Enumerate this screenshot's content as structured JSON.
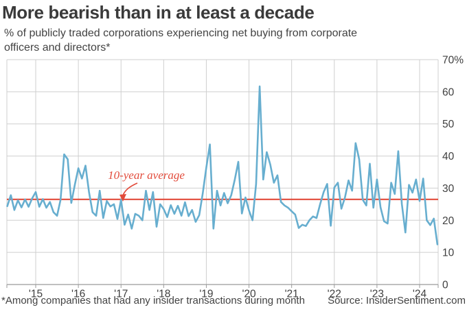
{
  "header": {
    "title": "More bearish than in at least a decade",
    "subtitle_line1": " % of publicly traded corporations experiencing net buying from corporate",
    "subtitle_line2": "officers and directors*"
  },
  "footer": {
    "footnote": "*Among companies that had any insider transactions during month",
    "source": "Source: InsiderSentiment.com"
  },
  "chart_data": {
    "type": "line",
    "series_name": "% of publicly traded corporations experiencing net buying from corporate officers and directors",
    "x_range": "May 2014 - Jun 2024, monthly",
    "x_tick_labels": [
      "'15",
      "'16",
      "'17",
      "'18",
      "'19",
      "'20",
      "'21",
      "'22",
      "'23",
      "'24"
    ],
    "y_tick_labels": [
      "0",
      "10",
      "20",
      "30",
      "40",
      "50",
      "60",
      "70%"
    ],
    "ylim": [
      0,
      70
    ],
    "grid": true,
    "values": [
      24.4,
      27.8,
      23.2,
      26.2,
      24.0,
      26.5,
      24.2,
      26.8,
      28.8,
      24.2,
      26.6,
      23.9,
      25.7,
      22.5,
      21.4,
      26.4,
      40.5,
      39.0,
      25.4,
      31.0,
      36.2,
      33.0,
      37.0,
      28.8,
      22.5,
      21.4,
      29.2,
      20.7,
      26.0,
      24.3,
      25.0,
      20.4,
      26.4,
      18.6,
      21.8,
      17.4,
      22.0,
      21.4,
      20.0,
      29.2,
      23.2,
      28.8,
      18.0,
      25.0,
      23.5,
      21.0,
      24.7,
      22.0,
      24.5,
      21.4,
      25.6,
      21.3,
      23.2,
      19.5,
      21.6,
      28.5,
      36.4,
      43.6,
      17.4,
      29.2,
      24.6,
      28.5,
      25.3,
      27.8,
      32.7,
      38.2,
      22.1,
      27.1,
      23.0,
      20.0,
      31.3,
      61.7,
      32.7,
      41.2,
      37.3,
      31.7,
      34.0,
      25.7,
      24.6,
      23.9,
      22.8,
      21.8,
      17.6,
      18.6,
      18.2,
      20.0,
      21.2,
      20.7,
      25.0,
      28.8,
      31.3,
      18.3,
      30.2,
      31.7,
      23.6,
      27.1,
      32.4,
      29.2,
      44.0,
      39.0,
      26.4,
      24.6,
      37.6,
      23.9,
      32.7,
      24.0,
      19.7,
      19.0,
      31.7,
      28.2,
      41.5,
      25.1,
      16.2,
      31.0,
      28.6,
      32.7,
      26.0,
      33.0,
      20.0,
      18.5,
      20.5,
      12.5
    ],
    "average_line": {
      "value": 26.5,
      "label": "10-year average"
    },
    "colors": {
      "series": "#67aecf",
      "average": "#e24b3b",
      "grid": "#cfcfcf",
      "axis_line": "#9a9a9a",
      "axis_text": "#3f3f3f",
      "title_text": "#3a3a3a"
    }
  }
}
